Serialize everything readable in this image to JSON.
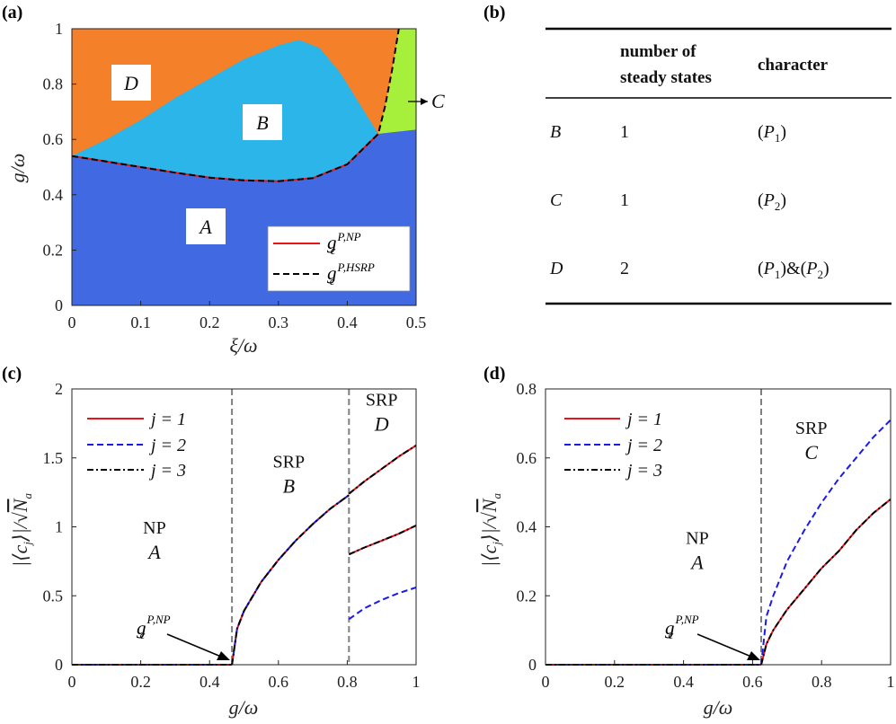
{
  "panel_labels": {
    "a": "(a)",
    "b": "(b)",
    "c": "(c)",
    "d": "(d)"
  },
  "colors": {
    "region_A": "#4169e1",
    "region_B": "#2bb5e8",
    "region_C": "#a6f03c",
    "region_D": "#f5802a",
    "line_NP": "#e8141a",
    "line_HSRP": "#000000",
    "j2": "#1a1aeb",
    "guide": "#808080"
  },
  "chart_data": [
    {
      "id": "a",
      "type": "area",
      "xlabel": "ξ/ω",
      "ylabel": "g/ω",
      "xlim": [
        0,
        0.5
      ],
      "ylim": [
        0,
        1
      ],
      "xticks": [
        "0",
        "0.1",
        "0.2",
        "0.3",
        "0.4",
        "0.5"
      ],
      "yticks": [
        "0",
        "0.2",
        "0.4",
        "0.6",
        "0.8",
        "1"
      ],
      "regions": [
        {
          "name": "A",
          "label": "A"
        },
        {
          "name": "B",
          "label": "B"
        },
        {
          "name": "C",
          "label": "C"
        },
        {
          "name": "D",
          "label": "D"
        }
      ],
      "boundaries": {
        "np_critical": {
          "x": [
            0,
            0.05,
            0.1,
            0.15,
            0.2,
            0.25,
            0.3,
            0.35,
            0.4,
            0.445,
            0.5
          ],
          "y": [
            0.54,
            0.52,
            0.5,
            0.48,
            0.462,
            0.452,
            0.449,
            0.46,
            0.51,
            0.62,
            0.635
          ]
        },
        "hsrp_critical": {
          "x": [
            0,
            0.05,
            0.1,
            0.15,
            0.2,
            0.25,
            0.3,
            0.35,
            0.4,
            0.445,
            0.455,
            0.465,
            0.475
          ],
          "y": [
            0.54,
            0.52,
            0.5,
            0.48,
            0.462,
            0.452,
            0.449,
            0.46,
            0.51,
            0.62,
            0.72,
            0.85,
            1.0
          ]
        },
        "b_d_upper": {
          "x": [
            0,
            0.05,
            0.1,
            0.15,
            0.2,
            0.25,
            0.3,
            0.33,
            0.36,
            0.39,
            0.42,
            0.445
          ],
          "y": [
            0.54,
            0.6,
            0.67,
            0.75,
            0.82,
            0.89,
            0.94,
            0.96,
            0.93,
            0.84,
            0.72,
            0.62
          ]
        }
      },
      "legend": [
        "g_c^{P,NP}",
        "g_c^{P,HSRP}"
      ],
      "legend_position": "bottom-right",
      "annotation": "C"
    },
    {
      "id": "b",
      "type": "table",
      "columns": [
        "",
        "number of steady states",
        "character"
      ],
      "rows": [
        [
          "B",
          "1",
          "(P1)"
        ],
        [
          "C",
          "1",
          "(P2)"
        ],
        [
          "D",
          "2",
          "(P1)&(P2)"
        ]
      ]
    },
    {
      "id": "c",
      "type": "line",
      "xlabel": "g/ω",
      "ylabel": "|⟨c_j⟩|/√N_a",
      "xlim": [
        0,
        1
      ],
      "ylim": [
        0,
        2
      ],
      "xticks": [
        "0",
        "0.2",
        "0.4",
        "0.6",
        "0.8",
        "1"
      ],
      "yticks": [
        "0",
        "0.5",
        "1",
        "1.5",
        "2"
      ],
      "vlines": [
        0.465,
        0.805
      ],
      "series": [
        {
          "name": "j = 1",
          "style": "solid",
          "segments": [
            {
              "x": [
                0,
                0.465
              ],
              "y": [
                0,
                0
              ]
            },
            {
              "x": [
                0.465,
                0.48,
                0.5,
                0.55,
                0.6,
                0.65,
                0.7,
                0.75,
                0.805
              ],
              "y": [
                0,
                0.26,
                0.39,
                0.6,
                0.76,
                0.9,
                1.02,
                1.13,
                1.23
              ]
            },
            {
              "x": [
                0.805,
                0.85,
                0.9,
                0.95,
                1.0
              ],
              "y": [
                1.24,
                1.33,
                1.42,
                1.51,
                1.59
              ]
            },
            {
              "x": [
                0.805,
                0.85,
                0.9,
                0.95,
                1.0
              ],
              "y": [
                0.8,
                0.85,
                0.9,
                0.95,
                1.01
              ]
            }
          ]
        },
        {
          "name": "j = 2",
          "style": "dashed",
          "segments": [
            {
              "x": [
                0,
                0.465
              ],
              "y": [
                0,
                0
              ]
            },
            {
              "x": [
                0.465,
                0.48,
                0.5,
                0.55,
                0.6,
                0.65,
                0.7,
                0.75,
                0.805
              ],
              "y": [
                0,
                0.26,
                0.39,
                0.6,
                0.76,
                0.9,
                1.02,
                1.13,
                1.23
              ]
            },
            {
              "x": [
                0.805,
                0.85,
                0.9,
                0.95,
                1.0
              ],
              "y": [
                0.33,
                0.41,
                0.47,
                0.52,
                0.56
              ]
            }
          ]
        },
        {
          "name": "j = 3",
          "style": "dashdot",
          "segments": [
            {
              "x": [
                0,
                0.465
              ],
              "y": [
                0,
                0
              ]
            },
            {
              "x": [
                0.465,
                0.48,
                0.5,
                0.55,
                0.6,
                0.65,
                0.7,
                0.75,
                0.805
              ],
              "y": [
                0,
                0.26,
                0.39,
                0.6,
                0.76,
                0.9,
                1.02,
                1.13,
                1.23
              ]
            },
            {
              "x": [
                0.805,
                0.85,
                0.9,
                0.95,
                1.0
              ],
              "y": [
                1.24,
                1.33,
                1.42,
                1.51,
                1.59
              ]
            },
            {
              "x": [
                0.805,
                0.85,
                0.9,
                0.95,
                1.0
              ],
              "y": [
                0.8,
                0.85,
                0.9,
                0.95,
                1.01
              ]
            }
          ]
        }
      ],
      "region_labels": [
        {
          "x": 0.24,
          "y": 0.95,
          "top": "NP",
          "bottom": "A"
        },
        {
          "x": 0.63,
          "y": 1.43,
          "top": "SRP",
          "bottom": "B"
        },
        {
          "x": 0.9,
          "y": 1.88,
          "top": "SRP",
          "bottom": "D"
        }
      ],
      "arrow_label": "g_c^{P,NP}",
      "legend_position": "top-left"
    },
    {
      "id": "d",
      "type": "line",
      "xlabel": "g/ω",
      "ylabel": "|⟨c_j⟩|/√N_a",
      "xlim": [
        0,
        1
      ],
      "ylim": [
        0,
        0.8
      ],
      "xticks": [
        "0",
        "0.2",
        "0.4",
        "0.6",
        "0.8",
        "1"
      ],
      "yticks": [
        "0",
        "0.2",
        "0.4",
        "0.6",
        "0.8"
      ],
      "vlines": [
        0.625
      ],
      "series": [
        {
          "name": "j = 1",
          "style": "solid",
          "segments": [
            {
              "x": [
                0,
                0.625
              ],
              "y": [
                0,
                0
              ]
            },
            {
              "x": [
                0.625,
                0.64,
                0.66,
                0.7,
                0.75,
                0.8,
                0.85,
                0.9,
                0.95,
                1.0
              ],
              "y": [
                0,
                0.06,
                0.1,
                0.16,
                0.22,
                0.28,
                0.33,
                0.39,
                0.44,
                0.48
              ]
            }
          ]
        },
        {
          "name": "j = 2",
          "style": "dashed",
          "segments": [
            {
              "x": [
                0,
                0.625
              ],
              "y": [
                0,
                0
              ]
            },
            {
              "x": [
                0.625,
                0.64,
                0.66,
                0.7,
                0.75,
                0.8,
                0.85,
                0.9,
                0.95,
                1.0
              ],
              "y": [
                0,
                0.14,
                0.2,
                0.3,
                0.39,
                0.47,
                0.54,
                0.6,
                0.66,
                0.71
              ]
            }
          ]
        },
        {
          "name": "j = 3",
          "style": "dashdot",
          "segments": [
            {
              "x": [
                0,
                0.625
              ],
              "y": [
                0,
                0
              ]
            },
            {
              "x": [
                0.625,
                0.64,
                0.66,
                0.7,
                0.75,
                0.8,
                0.85,
                0.9,
                0.95,
                1.0
              ],
              "y": [
                0,
                0.06,
                0.1,
                0.16,
                0.22,
                0.28,
                0.33,
                0.39,
                0.44,
                0.48
              ]
            }
          ]
        }
      ],
      "region_labels": [
        {
          "x": 0.44,
          "y": 0.35,
          "top": "NP",
          "bottom": "A"
        },
        {
          "x": 0.77,
          "y": 0.67,
          "top": "SRP",
          "bottom": "C"
        }
      ],
      "arrow_label": "g_c^{P,NP}",
      "legend_position": "top-left"
    }
  ]
}
